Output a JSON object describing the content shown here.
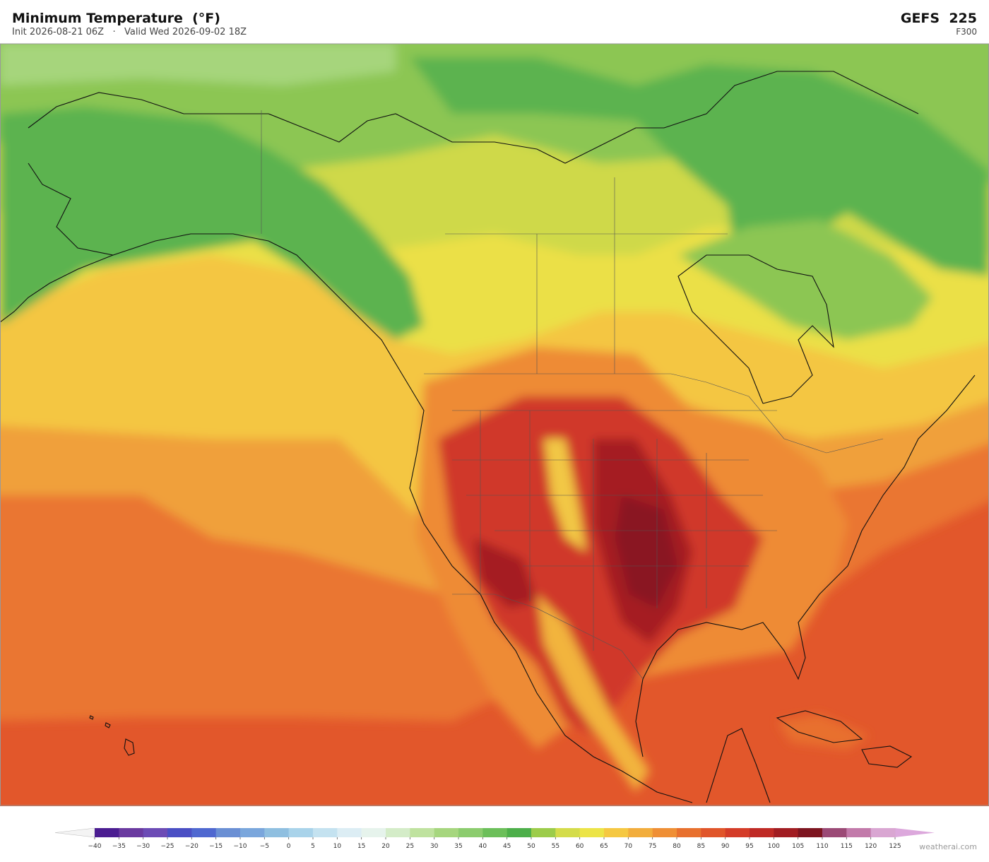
{
  "header": {
    "title": "Minimum Temperature  (°F)",
    "subtitle": "Init 2026-08-21 06Z   ·   Valid Wed 2026-09-02 18Z",
    "model": "GEFS  225",
    "forecast_hour": "F300"
  },
  "colorbar": {
    "ticks": [
      {
        "value": -40,
        "label": "−40"
      },
      {
        "value": -35,
        "label": "−35"
      },
      {
        "value": -30,
        "label": "−30"
      },
      {
        "value": -25,
        "label": "−25"
      },
      {
        "value": -20,
        "label": "−20"
      },
      {
        "value": -15,
        "label": "−15"
      },
      {
        "value": -10,
        "label": "−10"
      },
      {
        "value": -5,
        "label": "−5"
      },
      0,
      5,
      10,
      15,
      20,
      25,
      30,
      35,
      40,
      45,
      50,
      55,
      60,
      65,
      70,
      75,
      80,
      85,
      90,
      95,
      100,
      105,
      110,
      115,
      120,
      125
    ],
    "colors": [
      "#4b1d91",
      "#6a3aa0",
      "#6c4bb5",
      "#4a4fc4",
      "#4f68d0",
      "#6a8fd4",
      "#7aa6dc",
      "#8fbfe0",
      "#a9d3ea",
      "#c4e2f0",
      "#dcedf4",
      "#e6f3ec",
      "#d4ecc8",
      "#bfe29f",
      "#a6d67e",
      "#8ccc6e",
      "#6cbf5a",
      "#4daf4a",
      "#9ccc4a",
      "#d4dc4a",
      "#ece447",
      "#f5c842",
      "#f2ad3c",
      "#ef8f35",
      "#e8702e",
      "#e0552a",
      "#d43c28",
      "#bf2a25",
      "#a11d22",
      "#7d1520",
      "#9b4a76",
      "#c27aaa",
      "#d9a6d2"
    ],
    "extend_colors": [
      "#f4f4f4",
      "#dca8dc"
    ]
  },
  "watermark": "weatherai.com"
}
